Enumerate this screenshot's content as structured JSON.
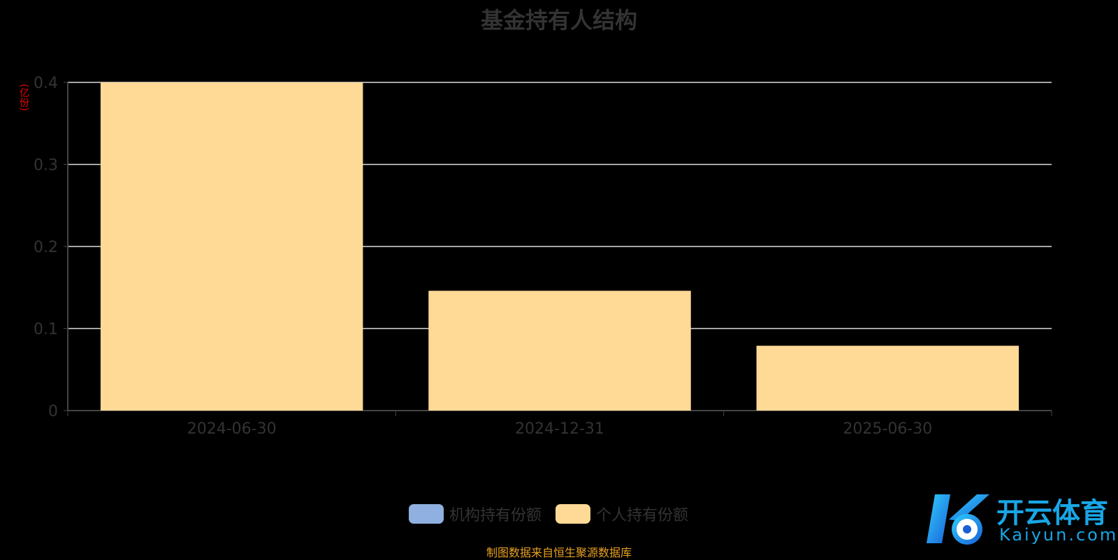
{
  "chart_data": {
    "type": "bar",
    "title": "基金持有人结构",
    "ylabel": "(亿份)",
    "categories": [
      "2024-06-30",
      "2024-12-31",
      "2025-06-30"
    ],
    "series": [
      {
        "name": "机构持有份额",
        "values": [
          0,
          0,
          0
        ],
        "color": "#8fb0e0"
      },
      {
        "name": "个人持有份额",
        "values": [
          0.4,
          0.146,
          0.079
        ],
        "color": "#ffd996"
      }
    ],
    "stacked": true,
    "ylim": [
      0,
      0.4
    ],
    "yticks": [
      "0",
      "0.1",
      "0.2",
      "0.3",
      "0.4"
    ],
    "grid": true,
    "legend": "bottom"
  },
  "source": "制图数据来自恒生聚源数据库",
  "watermark": {
    "cn": "开云体育",
    "en": "Kaiyun.com"
  }
}
